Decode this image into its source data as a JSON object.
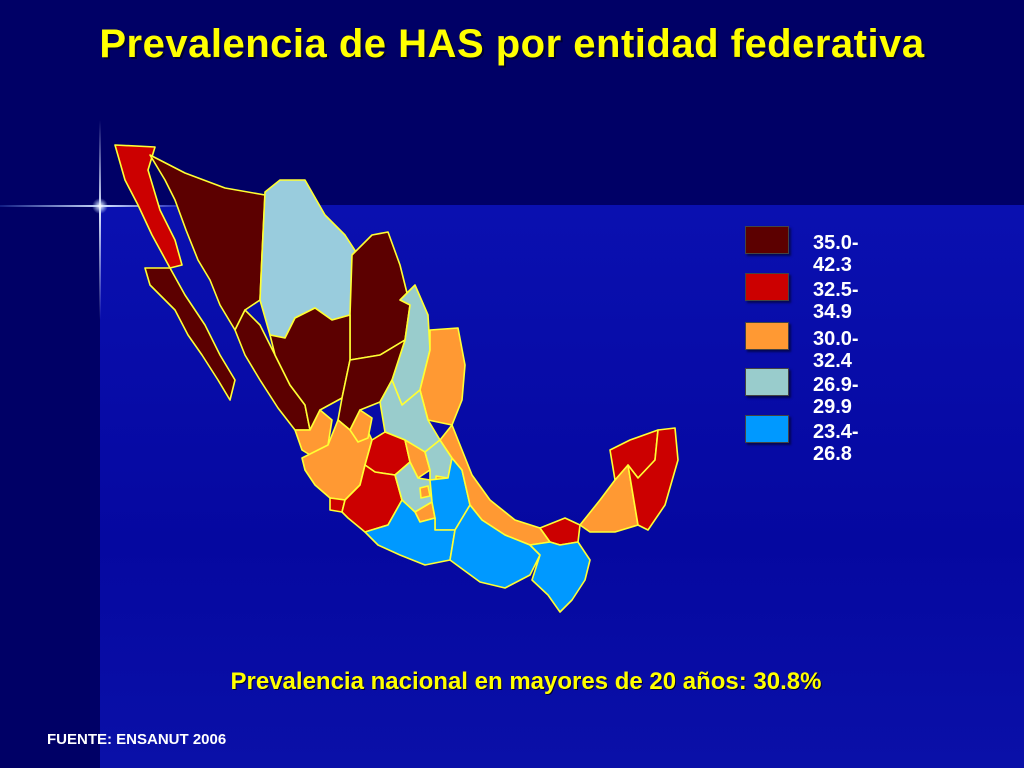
{
  "title": "Prevalencia de HAS por entidad federativa",
  "subtitle": "Prevalencia nacional en mayores de 20 años: 30.8%",
  "source": "FUENTE: ENSANUT 2006",
  "legend": [
    {
      "label": "35.0-42.3",
      "color": "#5c0000"
    },
    {
      "label": "32.5-34.9",
      "color": "#cc0000"
    },
    {
      "label": "30.0-32.4",
      "color": "#ff9933"
    },
    {
      "label": "26.9-29.9",
      "color": "#99cccc"
    },
    {
      "label": "23.4-26.8",
      "color": "#0099ff"
    }
  ],
  "colors": {
    "background": "#00007a",
    "title": "#ffff00",
    "border": "#ffff33"
  }
}
